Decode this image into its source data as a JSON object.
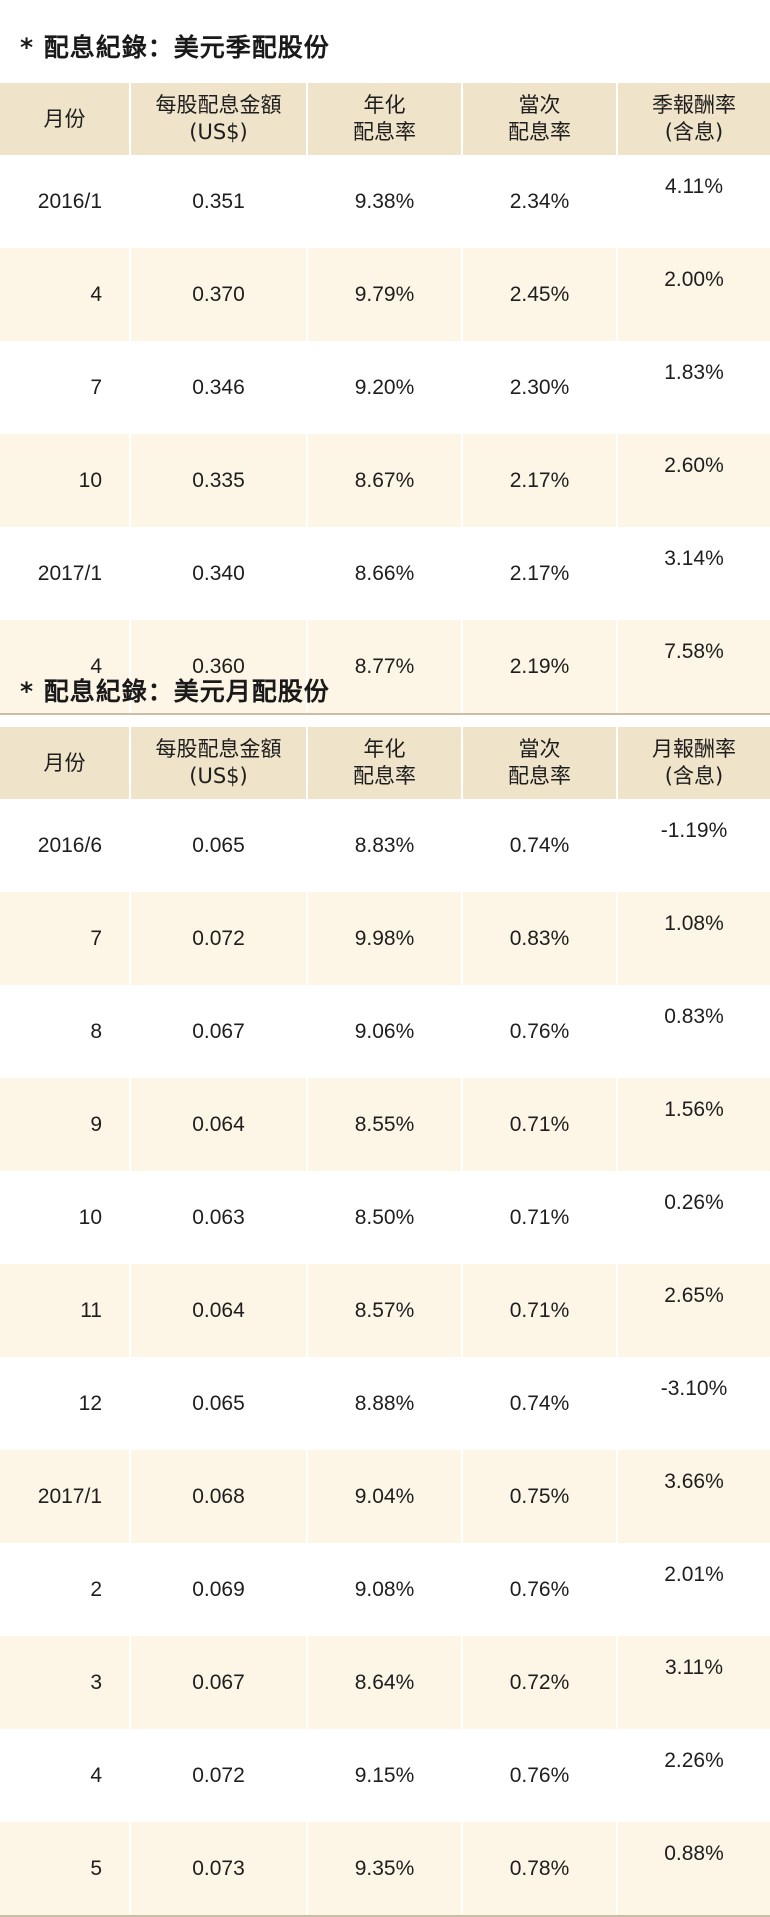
{
  "quarterly": {
    "title": "* 配息紀錄：美元季配股份",
    "headers": {
      "month": "月份",
      "dividend_line1": "每股配息金額",
      "dividend_line2": "(US$)",
      "annual_line1": "年化",
      "annual_line2": "配息率",
      "each_line1": "當次",
      "each_line2": "配息率",
      "return_line1": "季報酬率",
      "return_line2": "(含息)"
    },
    "rows": [
      {
        "month": "2016/1",
        "dividend": "0.351",
        "annual": "9.38%",
        "each": "2.34%",
        "ret": "4.11%"
      },
      {
        "month": "4",
        "dividend": "0.370",
        "annual": "9.79%",
        "each": "2.45%",
        "ret": "2.00%"
      },
      {
        "month": "7",
        "dividend": "0.346",
        "annual": "9.20%",
        "each": "2.30%",
        "ret": "1.83%"
      },
      {
        "month": "10",
        "dividend": "0.335",
        "annual": "8.67%",
        "each": "2.17%",
        "ret": "2.60%"
      },
      {
        "month": "2017/1",
        "dividend": "0.340",
        "annual": "8.66%",
        "each": "2.17%",
        "ret": "3.14%"
      },
      {
        "month": "4",
        "dividend": "0.360",
        "annual": "8.77%",
        "each": "2.19%",
        "ret": "7.58%"
      }
    ]
  },
  "monthly": {
    "title": "* 配息紀錄：美元月配股份",
    "headers": {
      "month": "月份",
      "dividend_line1": "每股配息金額",
      "dividend_line2": "(US$)",
      "annual_line1": "年化",
      "annual_line2": "配息率",
      "each_line1": "當次",
      "each_line2": "配息率",
      "return_line1": "月報酬率",
      "return_line2": "(含息)"
    },
    "rows": [
      {
        "month": "2016/6",
        "dividend": "0.065",
        "annual": "8.83%",
        "each": "0.74%",
        "ret": "-1.19%"
      },
      {
        "month": "7",
        "dividend": "0.072",
        "annual": "9.98%",
        "each": "0.83%",
        "ret": "1.08%"
      },
      {
        "month": "8",
        "dividend": "0.067",
        "annual": "9.06%",
        "each": "0.76%",
        "ret": "0.83%"
      },
      {
        "month": "9",
        "dividend": "0.064",
        "annual": "8.55%",
        "each": "0.71%",
        "ret": "1.56%"
      },
      {
        "month": "10",
        "dividend": "0.063",
        "annual": "8.50%",
        "each": "0.71%",
        "ret": "0.26%"
      },
      {
        "month": "11",
        "dividend": "0.064",
        "annual": "8.57%",
        "each": "0.71%",
        "ret": "2.65%"
      },
      {
        "month": "12",
        "dividend": "0.065",
        "annual": "8.88%",
        "each": "0.74%",
        "ret": "-3.10%"
      },
      {
        "month": "2017/1",
        "dividend": "0.068",
        "annual": "9.04%",
        "each": "0.75%",
        "ret": "3.66%"
      },
      {
        "month": "2",
        "dividend": "0.069",
        "annual": "9.08%",
        "each": "0.76%",
        "ret": "2.01%"
      },
      {
        "month": "3",
        "dividend": "0.067",
        "annual": "8.64%",
        "each": "0.72%",
        "ret": "3.11%"
      },
      {
        "month": "4",
        "dividend": "0.072",
        "annual": "9.15%",
        "each": "0.76%",
        "ret": "2.26%"
      },
      {
        "month": "5",
        "dividend": "0.073",
        "annual": "9.35%",
        "each": "0.78%",
        "ret": "0.88%"
      }
    ]
  },
  "colors": {
    "header_bg": "#efe3c9",
    "stripe_bg": "#fdf6e6",
    "bottom_rule": "#c9bda4"
  }
}
